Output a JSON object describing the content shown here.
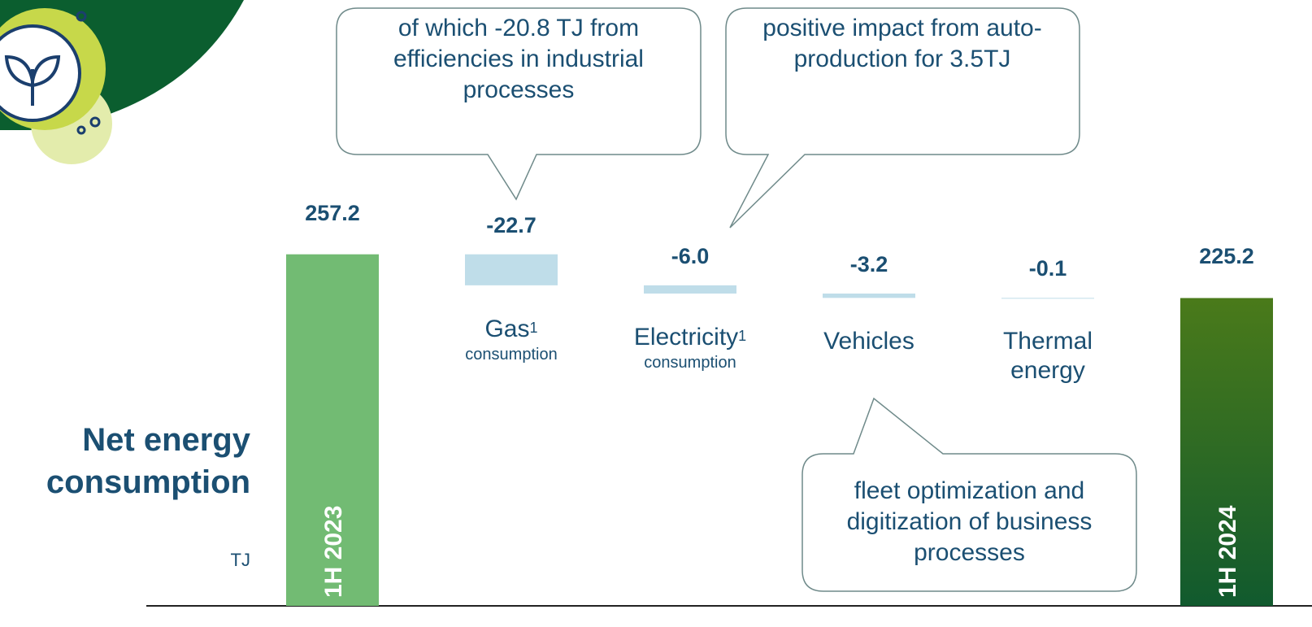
{
  "chart_data": {
    "type": "waterfall",
    "title": "Net energy consumption",
    "unit": "TJ",
    "categories": [
      "1H 2023",
      "Gas",
      "Electricity",
      "Vehicles",
      "Thermal energy",
      "1H 2024"
    ],
    "category_superscripts": [
      null,
      "1",
      "1",
      null,
      null,
      null
    ],
    "category_sublabels": [
      null,
      "consumption",
      "consumption",
      null,
      null,
      null
    ],
    "measure": [
      "absolute",
      "relative",
      "relative",
      "relative",
      "relative",
      "total"
    ],
    "values": [
      257.2,
      -22.7,
      -6.0,
      -3.2,
      -0.1,
      225.2
    ],
    "value_labels": [
      "257.2",
      "-22.7",
      "-6.0",
      "-3.2",
      "-0.1",
      "225.2"
    ],
    "colors": [
      "#72bb73",
      "#bfdde9",
      "#bfdde9",
      "#bfdde9",
      "#bfdde9",
      "#2f6b1f"
    ],
    "ylim": [
      0,
      260
    ],
    "annotations": [
      "of which -20.8 TJ from efficiencies in industrial processes",
      "positive impact from auto-production for 3.5TJ",
      "fleet optimization and digitization of business processes"
    ]
  }
}
